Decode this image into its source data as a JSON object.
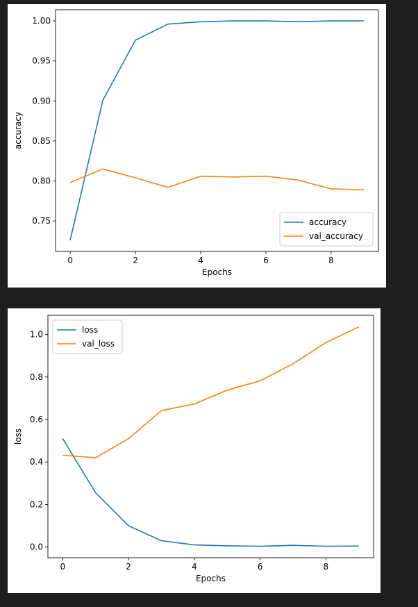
{
  "chart_data": [
    {
      "type": "line",
      "xlabel": "Epochs",
      "ylabel": "accuracy",
      "xlim": [
        -0.45,
        9.45
      ],
      "ylim": [
        0.712,
        1.014
      ],
      "xticks": [
        0,
        2,
        4,
        6,
        8
      ],
      "yticks": [
        0.75,
        0.8,
        0.85,
        0.9,
        0.95,
        1.0
      ],
      "ytick_labels": [
        "0.75",
        "0.80",
        "0.85",
        "0.90",
        "0.95",
        "1.00"
      ],
      "legend_position": "lower right",
      "grid": false,
      "x": [
        0,
        1,
        2,
        3,
        4,
        5,
        6,
        7,
        8,
        9
      ],
      "series": [
        {
          "name": "accuracy",
          "color": "#1f77b4",
          "values": [
            0.726,
            0.901,
            0.976,
            0.996,
            0.999,
            1.0,
            1.0,
            0.999,
            1.0,
            1.0
          ]
        },
        {
          "name": "val_accuracy",
          "color": "#ff7f0e",
          "values": [
            0.798,
            0.815,
            0.804,
            0.792,
            0.806,
            0.805,
            0.806,
            0.801,
            0.79,
            0.789
          ]
        }
      ]
    },
    {
      "type": "line",
      "xlabel": "Epochs",
      "ylabel": "loss",
      "xlim": [
        -0.45,
        9.45
      ],
      "ylim": [
        -0.05,
        1.09
      ],
      "xticks": [
        0,
        2,
        4,
        6,
        8
      ],
      "yticks": [
        0.0,
        0.2,
        0.4,
        0.6,
        0.8,
        1.0
      ],
      "ytick_labels": [
        "0.0",
        "0.2",
        "0.4",
        "0.6",
        "0.8",
        "1.0"
      ],
      "legend_position": "upper left",
      "grid": false,
      "x": [
        0,
        1,
        2,
        3,
        4,
        5,
        6,
        7,
        8,
        9
      ],
      "series": [
        {
          "name": "loss",
          "color": "#1f77b4",
          "values": [
            0.51,
            0.255,
            0.1,
            0.03,
            0.01,
            0.006,
            0.004,
            0.008,
            0.004,
            0.005
          ]
        },
        {
          "name": "val_loss",
          "color": "#ff7f0e",
          "values": [
            0.432,
            0.42,
            0.51,
            0.642,
            0.673,
            0.738,
            0.782,
            0.862,
            0.962,
            1.035
          ]
        }
      ]
    }
  ]
}
